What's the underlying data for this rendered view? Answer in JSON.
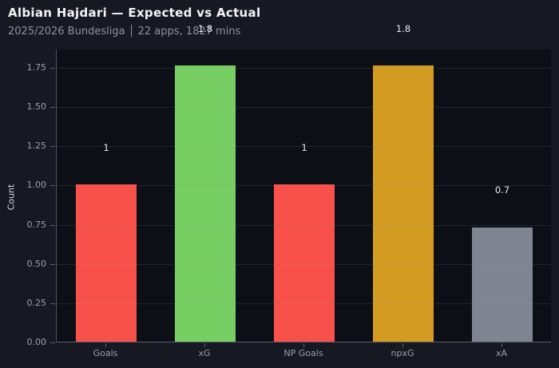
{
  "window": {
    "background": "#171922"
  },
  "header": {
    "title": "Albian Hajdari — Expected vs Actual",
    "subtitle": "2025/2026 Bundesliga │ 22 apps, 1827 mins"
  },
  "chart_data": {
    "type": "bar",
    "title": "Albian Hajdari — Expected vs Actual",
    "subtitle": "2025/2026 Bundesliga │ 22 apps, 1827 mins",
    "categories": [
      "Goals",
      "xG",
      "NP Goals",
      "npxG",
      "xA"
    ],
    "values": [
      1,
      1.76,
      1,
      1.76,
      0.73
    ],
    "value_labels": [
      "1",
      "1.8",
      "1",
      "1.8",
      "0.7"
    ],
    "bar_colors": [
      "#f8514b",
      "#77ce63",
      "#f8514b",
      "#d39b22",
      "#7e8591"
    ],
    "xlabel": "",
    "ylabel": "Count",
    "ylim": [
      0,
      1.867
    ],
    "ytick_labels": [
      "0.00",
      "0.25",
      "0.50",
      "0.75",
      "1.00",
      "1.25",
      "1.50",
      "1.75"
    ],
    "ytick_values": [
      0,
      0.25,
      0.5,
      0.75,
      1,
      1.25,
      1.5,
      1.75
    ],
    "grid": true,
    "grid_over_bars": true,
    "legend": false,
    "label_offset": 0.24,
    "colors": {
      "page_background": "#171922",
      "plot_background": "#0d0f16",
      "grid_color": "rgba(141,149,161,0.16)",
      "axis_color": "#5a5f68",
      "tick_label_color": "#9aa0a8",
      "value_label_color": "#e9ebee",
      "title_color": "#f3f4f6",
      "subtitle_color": "#8e929b"
    }
  }
}
